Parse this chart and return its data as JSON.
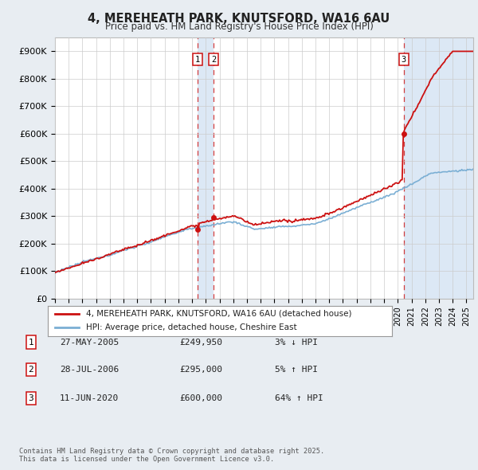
{
  "title1": "4, MEREHEATH PARK, KNUTSFORD, WA16 6AU",
  "title2": "Price paid vs. HM Land Registry's House Price Index (HPI)",
  "bg_color": "#e8edf2",
  "plot_bg_color": "#ffffff",
  "grid_color": "#cccccc",
  "hpi_color": "#7bafd4",
  "price_color": "#cc1111",
  "shade_color": "#dce8f5",
  "vline_color": "#cc1111",
  "legend_line1": "4, MEREHEATH PARK, KNUTSFORD, WA16 6AU (detached house)",
  "legend_line2": "HPI: Average price, detached house, Cheshire East",
  "transactions": [
    {
      "num": 1,
      "date": "27-MAY-2005",
      "x": 2005.41,
      "price": 249950,
      "pct": "3%",
      "dir": "↓"
    },
    {
      "num": 2,
      "date": "28-JUL-2006",
      "x": 2006.57,
      "price": 295000,
      "pct": "5%",
      "dir": "↑"
    },
    {
      "num": 3,
      "date": "11-JUN-2020",
      "x": 2020.44,
      "price": 600000,
      "pct": "64%",
      "dir": "↑"
    }
  ],
  "footnote1": "Contains HM Land Registry data © Crown copyright and database right 2025.",
  "footnote2": "This data is licensed under the Open Government Licence v3.0.",
  "ylabel_ticks": [
    "£0",
    "£100K",
    "£200K",
    "£300K",
    "£400K",
    "£500K",
    "£600K",
    "£700K",
    "£800K",
    "£900K"
  ],
  "ytick_vals": [
    0,
    100000,
    200000,
    300000,
    400000,
    500000,
    600000,
    700000,
    800000,
    900000
  ],
  "xmin": 1995,
  "xmax": 2025.5,
  "ymin": 0,
  "ymax": 950000
}
